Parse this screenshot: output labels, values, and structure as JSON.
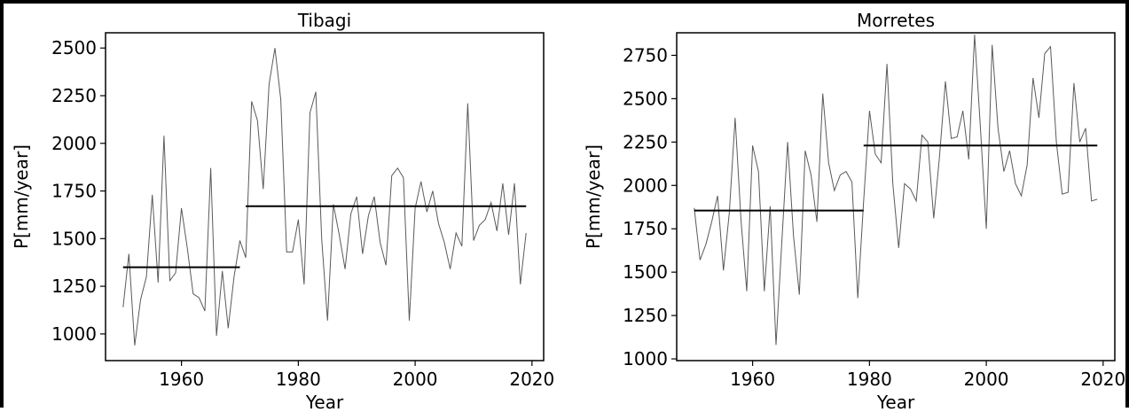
{
  "chart_data": [
    {
      "type": "line",
      "title": "Tibagi",
      "xlabel": "Year",
      "ylabel": "P[mm/year]",
      "xlim": [
        1947,
        2022
      ],
      "ylim": [
        860,
        2580
      ],
      "xticks": [
        1960,
        1980,
        2000,
        2020
      ],
      "yticks": [
        1000,
        1250,
        1500,
        1750,
        2000,
        2250,
        2500
      ],
      "grid": false,
      "legend": "none",
      "colors": {
        "series": "#5a5a5a",
        "segment": "#000000"
      },
      "series": [
        {
          "x": [
            1950,
            1951,
            1952,
            1953,
            1954,
            1955,
            1956,
            1957,
            1958,
            1959,
            1960,
            1961,
            1962,
            1963,
            1964,
            1965,
            1966,
            1967,
            1968,
            1969,
            1970,
            1971,
            1972,
            1973,
            1974,
            1975,
            1976,
            1977,
            1978,
            1979,
            1980,
            1981,
            1982,
            1983,
            1984,
            1985,
            1986,
            1987,
            1988,
            1989,
            1990,
            1991,
            1992,
            1993,
            1994,
            1995,
            1996,
            1997,
            1998,
            1999,
            2000,
            2001,
            2002,
            2003,
            2004,
            2005,
            2006,
            2007,
            2008,
            2009,
            2010,
            2011,
            2012,
            2013,
            2014,
            2015,
            2016,
            2017,
            2018,
            2019
          ],
          "y": [
            1140,
            1420,
            940,
            1180,
            1300,
            1730,
            1270,
            2040,
            1280,
            1320,
            1660,
            1450,
            1210,
            1190,
            1120,
            1870,
            990,
            1330,
            1030,
            1300,
            1490,
            1400,
            2220,
            2120,
            1760,
            2310,
            2500,
            2230,
            1430,
            1430,
            1600,
            1260,
            2160,
            2270,
            1500,
            1070,
            1680,
            1520,
            1340,
            1630,
            1720,
            1420,
            1620,
            1720,
            1480,
            1360,
            1830,
            1870,
            1820,
            1070,
            1660,
            1800,
            1640,
            1750,
            1580,
            1480,
            1340,
            1530,
            1460,
            2210,
            1490,
            1570,
            1600,
            1690,
            1540,
            1790,
            1520,
            1790,
            1260,
            1530
          ]
        }
      ],
      "segments": [
        {
          "x": [
            1950,
            1970
          ],
          "y": 1350
        },
        {
          "x": [
            1971,
            2019
          ],
          "y": 1670
        }
      ]
    },
    {
      "type": "line",
      "title": "Morretes",
      "xlabel": "Year",
      "ylabel": "P[mm/year]",
      "xlim": [
        1947,
        2022
      ],
      "ylim": [
        990,
        2880
      ],
      "xticks": [
        1960,
        1980,
        2000,
        2020
      ],
      "yticks": [
        1000,
        1250,
        1500,
        1750,
        2000,
        2250,
        2500,
        2750
      ],
      "grid": false,
      "legend": "none",
      "colors": {
        "series": "#5a5a5a",
        "segment": "#000000"
      },
      "series": [
        {
          "x": [
            1950,
            1951,
            1952,
            1953,
            1954,
            1955,
            1956,
            1957,
            1958,
            1959,
            1960,
            1961,
            1962,
            1963,
            1964,
            1965,
            1966,
            1967,
            1968,
            1969,
            1970,
            1971,
            1972,
            1973,
            1974,
            1975,
            1976,
            1977,
            1978,
            1979,
            1980,
            1981,
            1982,
            1983,
            1984,
            1985,
            1986,
            1987,
            1988,
            1989,
            1990,
            1991,
            1992,
            1993,
            1994,
            1995,
            1996,
            1997,
            1998,
            1999,
            2000,
            2001,
            2002,
            2003,
            2004,
            2005,
            2006,
            2007,
            2008,
            2009,
            2010,
            2011,
            2012,
            2013,
            2014,
            2015,
            2016,
            2017,
            2018,
            2019
          ],
          "y": [
            1870,
            1570,
            1660,
            1790,
            1940,
            1510,
            1840,
            2390,
            1800,
            1390,
            2230,
            2080,
            1390,
            1880,
            1080,
            1680,
            2250,
            1710,
            1370,
            2200,
            2060,
            1790,
            2530,
            2130,
            1970,
            2060,
            2080,
            2020,
            1350,
            1910,
            2430,
            2180,
            2130,
            2700,
            2010,
            1640,
            2010,
            1980,
            1910,
            2290,
            2250,
            1810,
            2170,
            2600,
            2270,
            2280,
            2430,
            2150,
            2870,
            2330,
            1750,
            2810,
            2330,
            2080,
            2200,
            2010,
            1940,
            2120,
            2620,
            2390,
            2760,
            2800,
            2250,
            1950,
            1960,
            2590,
            2250,
            2330,
            1910,
            1920
          ]
        }
      ],
      "segments": [
        {
          "x": [
            1950,
            1979
          ],
          "y": 1855
        },
        {
          "x": [
            1979,
            2019
          ],
          "y": 2230
        }
      ]
    }
  ]
}
